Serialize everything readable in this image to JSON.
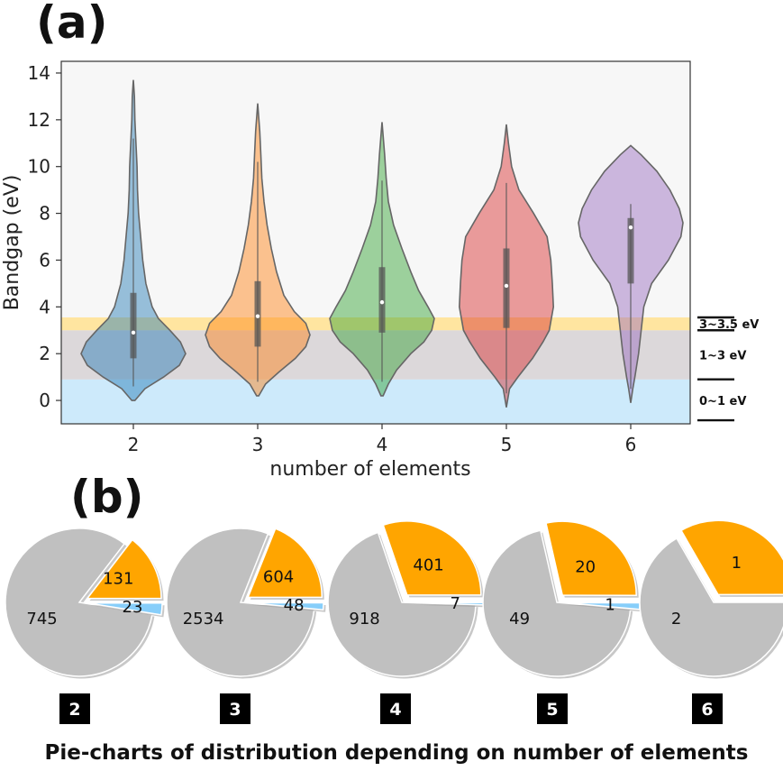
{
  "panel_labels": {
    "a": "(a)",
    "b": "(b)"
  },
  "caption": "Pie-charts of distribution depending on number of elements",
  "colors": {
    "band_0_1": "#cdeafb",
    "band_1_3": "#dcd8da",
    "band_3_35": "#ffe5a0",
    "plot_bg": "#f7f7f7",
    "pie_gray": "#c0c0c0",
    "pie_orange": "#ffa500",
    "pie_blue": "#87cefa",
    "badge": "#000000"
  },
  "chart_data": [
    {
      "type": "violin",
      "xlabel": "number of elements",
      "ylabel": "Bandgap (eV)",
      "ylim": [
        -1,
        14.5
      ],
      "yticks": [
        0,
        2,
        4,
        6,
        8,
        10,
        12,
        14
      ],
      "categories": [
        "2",
        "3",
        "4",
        "5",
        "6"
      ],
      "bands": [
        {
          "label": "0~1 eV",
          "range": [
            -1,
            0.9
          ],
          "color": "#cdeafb"
        },
        {
          "label": "1~3 eV",
          "range": [
            0.9,
            3.0
          ],
          "color": "#dcd8da"
        },
        {
          "label": "3~3.5 eV",
          "range": [
            3.0,
            3.55
          ],
          "color": "#ffe5a0"
        }
      ],
      "violins": [
        {
          "category": "2",
          "color": "#1f77b4",
          "min": 0.0,
          "max": 13.7,
          "median": 2.9,
          "q1": 1.8,
          "q3": 4.6,
          "profile": [
            [
              0.0,
              0.03
            ],
            [
              0.5,
              0.22
            ],
            [
              1.0,
              0.58
            ],
            [
              1.5,
              0.88
            ],
            [
              2.0,
              1.0
            ],
            [
              2.5,
              0.9
            ],
            [
              3.0,
              0.7
            ],
            [
              3.5,
              0.48
            ],
            [
              4.0,
              0.36
            ],
            [
              5.0,
              0.24
            ],
            [
              6.0,
              0.18
            ],
            [
              7.0,
              0.14
            ],
            [
              8.0,
              0.1
            ],
            [
              9.0,
              0.08
            ],
            [
              10.0,
              0.07
            ],
            [
              11.0,
              0.05
            ],
            [
              12.0,
              0.03
            ],
            [
              13.0,
              0.02
            ],
            [
              13.7,
              0.0
            ]
          ]
        },
        {
          "category": "3",
          "color": "#ff7f0e",
          "min": 0.2,
          "max": 12.7,
          "median": 3.6,
          "q1": 2.3,
          "q3": 5.1,
          "profile": [
            [
              0.2,
              0.02
            ],
            [
              0.7,
              0.15
            ],
            [
              1.2,
              0.4
            ],
            [
              1.8,
              0.72
            ],
            [
              2.3,
              0.92
            ],
            [
              2.8,
              1.0
            ],
            [
              3.3,
              0.92
            ],
            [
              3.8,
              0.7
            ],
            [
              4.5,
              0.5
            ],
            [
              5.5,
              0.36
            ],
            [
              6.5,
              0.26
            ],
            [
              7.5,
              0.18
            ],
            [
              8.5,
              0.12
            ],
            [
              9.5,
              0.08
            ],
            [
              10.5,
              0.06
            ],
            [
              11.5,
              0.04
            ],
            [
              12.7,
              0.0
            ]
          ]
        },
        {
          "category": "4",
          "color": "#2ca02c",
          "min": 0.2,
          "max": 11.9,
          "median": 4.2,
          "q1": 2.9,
          "q3": 5.7,
          "profile": [
            [
              0.2,
              0.02
            ],
            [
              0.7,
              0.12
            ],
            [
              1.3,
              0.28
            ],
            [
              2.0,
              0.55
            ],
            [
              2.5,
              0.8
            ],
            [
              3.0,
              0.95
            ],
            [
              3.5,
              1.0
            ],
            [
              4.0,
              0.88
            ],
            [
              4.7,
              0.7
            ],
            [
              5.5,
              0.55
            ],
            [
              6.5,
              0.38
            ],
            [
              7.5,
              0.22
            ],
            [
              8.5,
              0.12
            ],
            [
              9.5,
              0.08
            ],
            [
              10.5,
              0.05
            ],
            [
              11.9,
              0.0
            ]
          ]
        },
        {
          "category": "5",
          "color": "#d62728",
          "min": -0.3,
          "max": 11.8,
          "median": 4.9,
          "q1": 3.1,
          "q3": 6.5,
          "profile": [
            [
              -0.3,
              0.0
            ],
            [
              0.5,
              0.06
            ],
            [
              1.0,
              0.22
            ],
            [
              1.8,
              0.5
            ],
            [
              2.5,
              0.7
            ],
            [
              3.0,
              0.82
            ],
            [
              4.0,
              0.9
            ],
            [
              5.0,
              0.88
            ],
            [
              6.0,
              0.85
            ],
            [
              7.0,
              0.78
            ],
            [
              8.0,
              0.52
            ],
            [
              9.0,
              0.24
            ],
            [
              10.0,
              0.1
            ],
            [
              11.0,
              0.04
            ],
            [
              11.8,
              0.0
            ]
          ]
        },
        {
          "category": "6",
          "color": "#9467bd",
          "min": -0.1,
          "max": 10.9,
          "median": 7.4,
          "q1": 5.0,
          "q3": 7.8,
          "profile": [
            [
              -0.1,
              0.0
            ],
            [
              0.5,
              0.04
            ],
            [
              1.0,
              0.08
            ],
            [
              2.0,
              0.15
            ],
            [
              3.0,
              0.2
            ],
            [
              4.0,
              0.25
            ],
            [
              5.0,
              0.4
            ],
            [
              6.0,
              0.72
            ],
            [
              7.0,
              0.96
            ],
            [
              7.6,
              1.0
            ],
            [
              8.2,
              0.93
            ],
            [
              9.0,
              0.75
            ],
            [
              9.8,
              0.5
            ],
            [
              10.5,
              0.2
            ],
            [
              10.9,
              0.0
            ]
          ]
        }
      ]
    },
    {
      "type": "pie",
      "charts": [
        {
          "badge": "2",
          "values": [
            745,
            131,
            23
          ],
          "labels": [
            "745",
            "131",
            "23"
          ]
        },
        {
          "badge": "3",
          "values": [
            2534,
            604,
            48
          ],
          "labels": [
            "2534",
            "604",
            "48"
          ]
        },
        {
          "badge": "4",
          "values": [
            918,
            401,
            7
          ],
          "labels": [
            "918",
            "401",
            "7"
          ]
        },
        {
          "badge": "5",
          "values": [
            49,
            20,
            1
          ],
          "labels": [
            "49",
            "20",
            "1"
          ]
        },
        {
          "badge": "6",
          "values": [
            2,
            1
          ],
          "labels": [
            "2",
            "1"
          ]
        }
      ],
      "slice_colors": [
        "#c0c0c0",
        "#ffa500",
        "#87cefa"
      ]
    }
  ]
}
